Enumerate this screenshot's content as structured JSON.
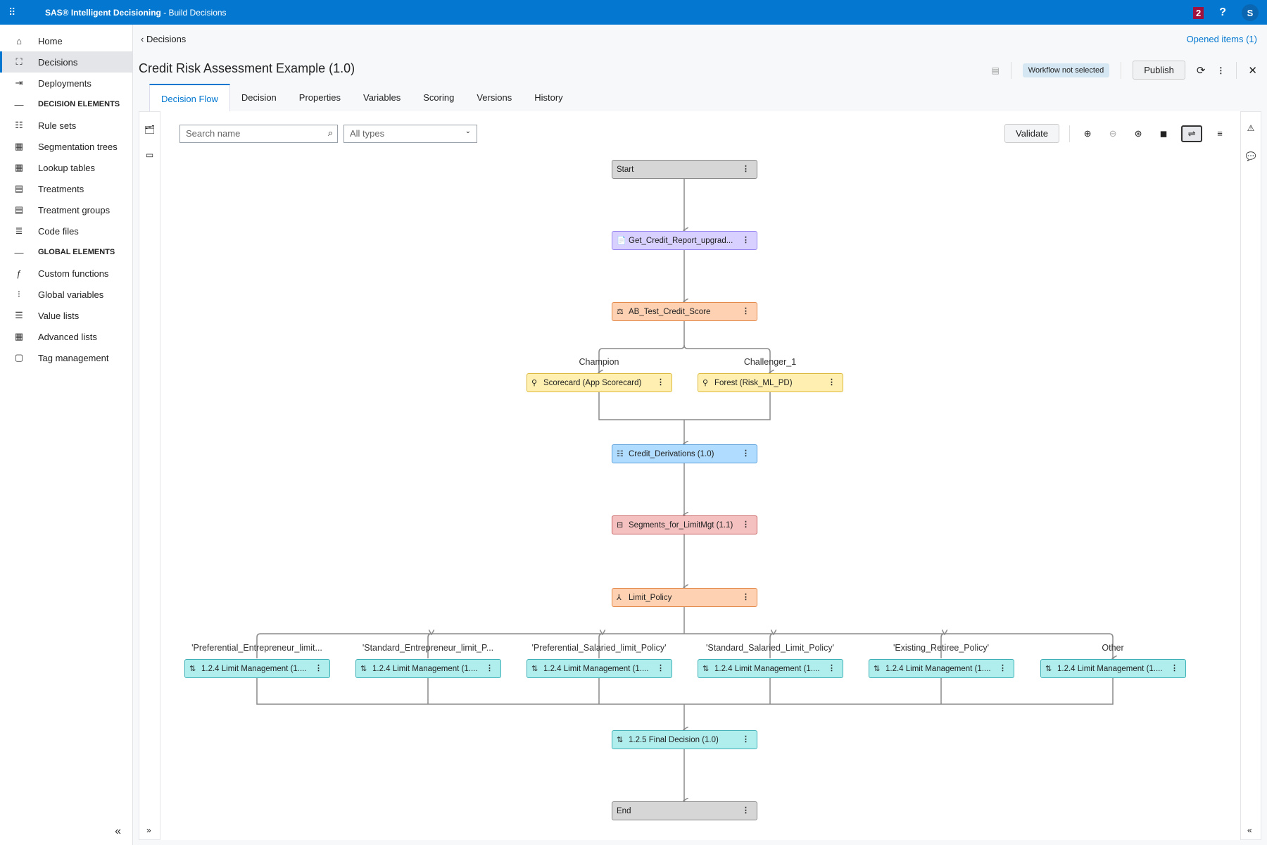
{
  "app": {
    "title_bold": "SAS® Intelligent Decisioning",
    "title_rest": " - Build Decisions",
    "notifications": "2",
    "help": "?",
    "user_initial": "S"
  },
  "sidebar": {
    "items": [
      {
        "label": "Home",
        "icon": "home-icon"
      },
      {
        "label": "Decisions",
        "icon": "decisions-icon",
        "active": true
      },
      {
        "label": "Deployments",
        "icon": "deployments-icon"
      },
      {
        "label": "DECISION ELEMENTS",
        "header": true
      },
      {
        "label": "Rule sets"
      },
      {
        "label": "Segmentation trees"
      },
      {
        "label": "Lookup tables"
      },
      {
        "label": "Treatments"
      },
      {
        "label": "Treatment groups"
      },
      {
        "label": "Code files"
      },
      {
        "label": "GLOBAL ELEMENTS",
        "header": true
      },
      {
        "label": "Custom functions"
      },
      {
        "label": "Global variables"
      },
      {
        "label": "Value lists"
      },
      {
        "label": "Advanced lists"
      },
      {
        "label": "Tag management"
      }
    ],
    "collapse": "«"
  },
  "header": {
    "breadcrumb": "Decisions",
    "opened_items": "Opened items (1)",
    "title": "Credit Risk Assessment Example (1.0)",
    "workflow": "Workflow not selected",
    "publish": "Publish"
  },
  "tabs": [
    "Decision Flow",
    "Decision",
    "Properties",
    "Variables",
    "Scoring",
    "Versions",
    "History"
  ],
  "toolbar": {
    "search_placeholder": "Search name",
    "type_filter": "All types",
    "validate": "Validate"
  },
  "flow": {
    "start": "Start",
    "get_credit": "Get_Credit_Report_upgrad...",
    "ab_test": "AB_Test_Credit_Score",
    "champion_label": "Champion",
    "challenger_label": "Challenger_1",
    "scorecard": "Scorecard (App Scorecard)",
    "forest": "Forest (Risk_ML_PD)",
    "credit_derivations": "Credit_Derivations (1.0)",
    "segments": "Segments_for_LimitMgt (1.1)",
    "limit_policy": "Limit_Policy",
    "branches": [
      {
        "label": "'Preferential_Entrepreneur_limit...",
        "node": "1.2.4 Limit Management (1...."
      },
      {
        "label": "'Standard_Entrepreneur_limit_P...",
        "node": "1.2.4 Limit Management (1...."
      },
      {
        "label": "'Preferential_Salaried_limit_Policy'",
        "node": "1.2.4 Limit Management (1...."
      },
      {
        "label": "'Standard_Salaried_Limit_Policy'",
        "node": "1.2.4 Limit Management (1...."
      },
      {
        "label": "'Existing_Retiree_Policy'",
        "node": "1.2.4 Limit Management (1...."
      },
      {
        "label": "Other",
        "node": "1.2.4 Limit Management (1...."
      }
    ],
    "final": "1.2.5 Final Decision (1.0)",
    "end": "End"
  },
  "colors": {
    "brand": "#0478d0",
    "start_end": "#d6d6d6",
    "code_file": "#d8d0ff",
    "ab_test": "#ffd1b3",
    "model": "#ffefb0",
    "rule_set": "#b0dcff",
    "segmentation": "#f4c0c0",
    "decision": "#b0eeee"
  }
}
